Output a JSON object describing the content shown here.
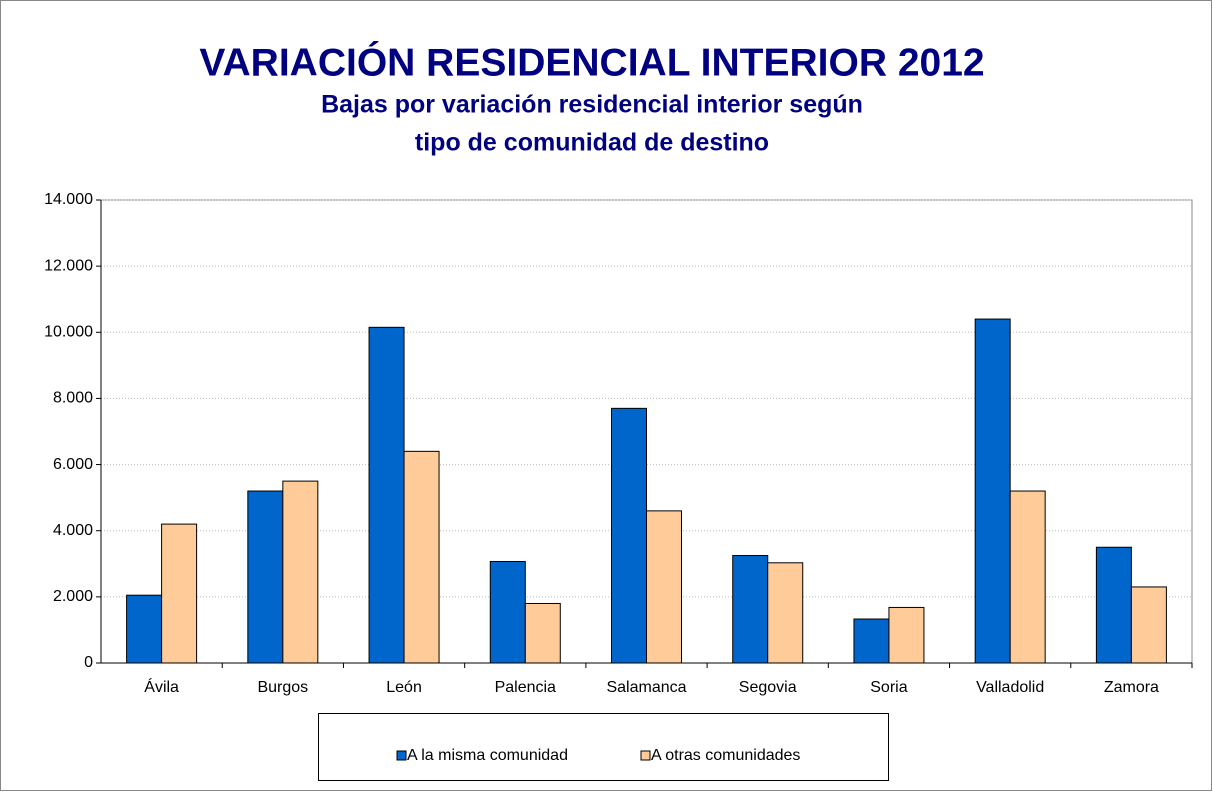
{
  "chart_data": {
    "type": "bar",
    "title": "VARIACIÓN RESIDENCIAL INTERIOR 2012",
    "subtitle": [
      "Bajas por variación residencial interior según",
      "tipo de comunidad de destino"
    ],
    "categories": [
      "Ávila",
      "Burgos",
      "León",
      "Palencia",
      "Salamanca",
      "Segovia",
      "Soria",
      "Valladolid",
      "Zamora"
    ],
    "series": [
      {
        "name": "A la misma comunidad",
        "color": "#0066cc",
        "values": [
          2050,
          5200,
          10150,
          3070,
          7700,
          3250,
          1330,
          10400,
          3500
        ]
      },
      {
        "name": "A otras comunidades",
        "color": "#ffcc99",
        "values": [
          4200,
          5500,
          6400,
          1800,
          4600,
          3030,
          1680,
          5200,
          2300
        ]
      }
    ],
    "ylim": [
      0,
      14000
    ],
    "yticks": [
      0,
      {
        "value": 2000,
        "label": "2.000"
      },
      {
        "value": 4000,
        "label": "4.000"
      },
      {
        "value": 6000,
        "label": "6.000"
      },
      {
        "value": 8000,
        "label": "8.000"
      },
      {
        "value": 10000,
        "label": "10.000"
      },
      {
        "value": 12000,
        "label": "12.000"
      },
      {
        "value": 14000,
        "label": "14.000"
      }
    ],
    "grid": true,
    "legend": "bottom"
  }
}
